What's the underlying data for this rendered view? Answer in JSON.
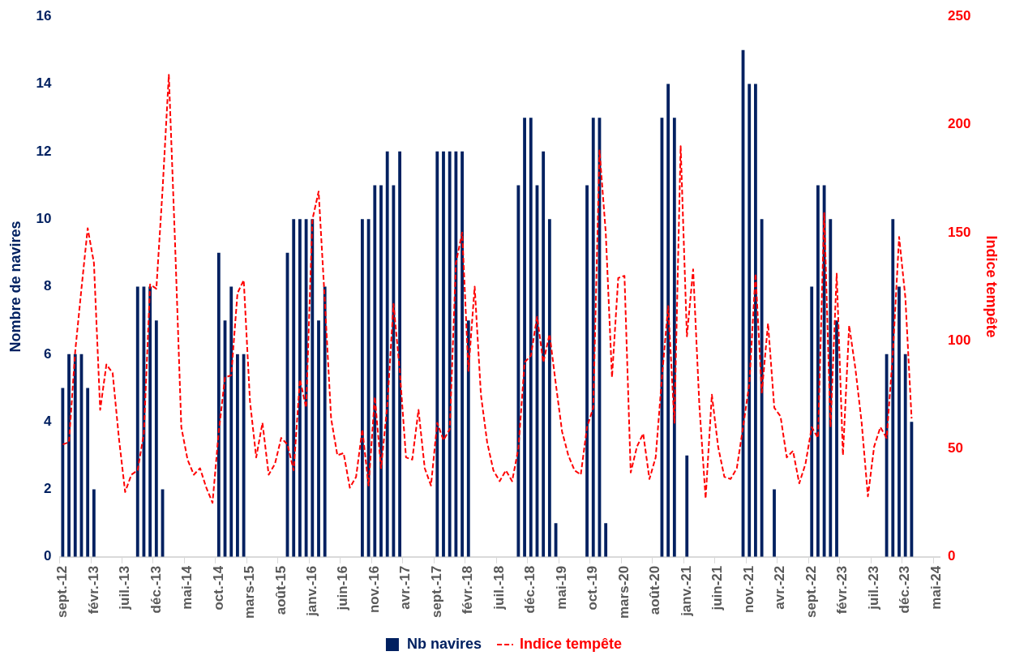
{
  "chart_data": {
    "type": "bar",
    "categories": [
      "sept.-12",
      null,
      null,
      null,
      null,
      "févr.-13",
      null,
      null,
      null,
      null,
      "juil.-13",
      null,
      null,
      null,
      null,
      "déc.-13",
      null,
      null,
      null,
      null,
      "mai-14",
      null,
      null,
      null,
      null,
      "oct.-14",
      null,
      null,
      null,
      null,
      "mars-15",
      null,
      null,
      null,
      null,
      "août-15",
      null,
      null,
      null,
      null,
      "janv.-16",
      null,
      null,
      null,
      null,
      "juin-16",
      null,
      null,
      null,
      null,
      "nov.-16",
      null,
      null,
      null,
      null,
      "avr.-17",
      null,
      null,
      null,
      null,
      "sept.-17",
      null,
      null,
      null,
      null,
      "févr.-18",
      null,
      null,
      null,
      null,
      "juil.-18",
      null,
      null,
      null,
      null,
      "déc.-18",
      null,
      null,
      null,
      null,
      "mai-19",
      null,
      null,
      null,
      null,
      "oct.-19",
      null,
      null,
      null,
      null,
      "mars-20",
      null,
      null,
      null,
      null,
      "août-20",
      null,
      null,
      null,
      null,
      "janv.-21",
      null,
      null,
      null,
      null,
      "juin-21",
      null,
      null,
      null,
      null,
      "nov.-21",
      null,
      null,
      null,
      null,
      "avr.-22",
      null,
      null,
      null,
      null,
      "sept.-22",
      null,
      null,
      null,
      null,
      "févr.-23",
      null,
      null,
      null,
      null,
      "juil.-23",
      null,
      null,
      null,
      null,
      "déc.-23",
      null,
      null,
      null,
      null,
      "mai-24"
    ],
    "series": [
      {
        "name": "Nb navires",
        "color": "#002060",
        "values": [
          5,
          6,
          6,
          6,
          5,
          2,
          null,
          null,
          null,
          null,
          null,
          null,
          8,
          8,
          8,
          7,
          2,
          null,
          null,
          null,
          null,
          null,
          null,
          null,
          null,
          9,
          7,
          8,
          6,
          6,
          null,
          null,
          null,
          null,
          null,
          null,
          9,
          10,
          10,
          10,
          10,
          7,
          8,
          null,
          null,
          null,
          null,
          null,
          10,
          10,
          11,
          11,
          12,
          11,
          12,
          null,
          null,
          null,
          null,
          null,
          12,
          12,
          12,
          12,
          12,
          7,
          null,
          null,
          null,
          null,
          null,
          null,
          null,
          11,
          13,
          13,
          11,
          12,
          10,
          1,
          null,
          null,
          null,
          null,
          11,
          13,
          13,
          1,
          null,
          null,
          null,
          null,
          null,
          null,
          null,
          null,
          13,
          14,
          13,
          null,
          3,
          null,
          null,
          null,
          null,
          null,
          null,
          null,
          null,
          15,
          14,
          14,
          10,
          null,
          2,
          null,
          null,
          null,
          null,
          null,
          8,
          11,
          11,
          10,
          7,
          null,
          null,
          null,
          null,
          null,
          null,
          null,
          6,
          10,
          8,
          6,
          4,
          null,
          null,
          null,
          null
        ]
      },
      {
        "name": "Indice tempête",
        "type": "line",
        "axis": "y2",
        "color": "#ff0000",
        "line_style": "dashed",
        "values": [
          52,
          53,
          95,
          124,
          152,
          136,
          68,
          89,
          85,
          55,
          30,
          38,
          40,
          57,
          126,
          124,
          170,
          223,
          145,
          60,
          45,
          38,
          41,
          32,
          25,
          58,
          83,
          84,
          122,
          128,
          72,
          46,
          62,
          38,
          43,
          55,
          52,
          40,
          82,
          69,
          156,
          169,
          118,
          64,
          47,
          48,
          32,
          37,
          59,
          33,
          74,
          41,
          70,
          117,
          86,
          46,
          45,
          68,
          41,
          33,
          62,
          54,
          59,
          136,
          150,
          86,
          125,
          75,
          53,
          40,
          35,
          40,
          35,
          50,
          90,
          93,
          111,
          90,
          103,
          80,
          58,
          47,
          40,
          38,
          60,
          69,
          188,
          150,
          83,
          129,
          130,
          39,
          51,
          57,
          36,
          46,
          83,
          116,
          62,
          190,
          102,
          133,
          70,
          27,
          75,
          51,
          37,
          36,
          41,
          60,
          80,
          131,
          76,
          108,
          69,
          65,
          46,
          49,
          34,
          43,
          60,
          55,
          159,
          60,
          131,
          47,
          107,
          87,
          62,
          28,
          51,
          60,
          55,
          94,
          148,
          120,
          64,
          null,
          null,
          null,
          null
        ]
      }
    ],
    "ylabel": "Nombre de navires",
    "y2label": "Indice tempête",
    "ylim": [
      0,
      16
    ],
    "yticks": [
      0,
      2,
      4,
      6,
      8,
      10,
      12,
      14,
      16
    ],
    "y2lim": [
      0,
      250
    ],
    "y2ticks": [
      0,
      50,
      100,
      150,
      200,
      250
    ],
    "grid": false,
    "legend": "bottom",
    "marker": "none"
  }
}
